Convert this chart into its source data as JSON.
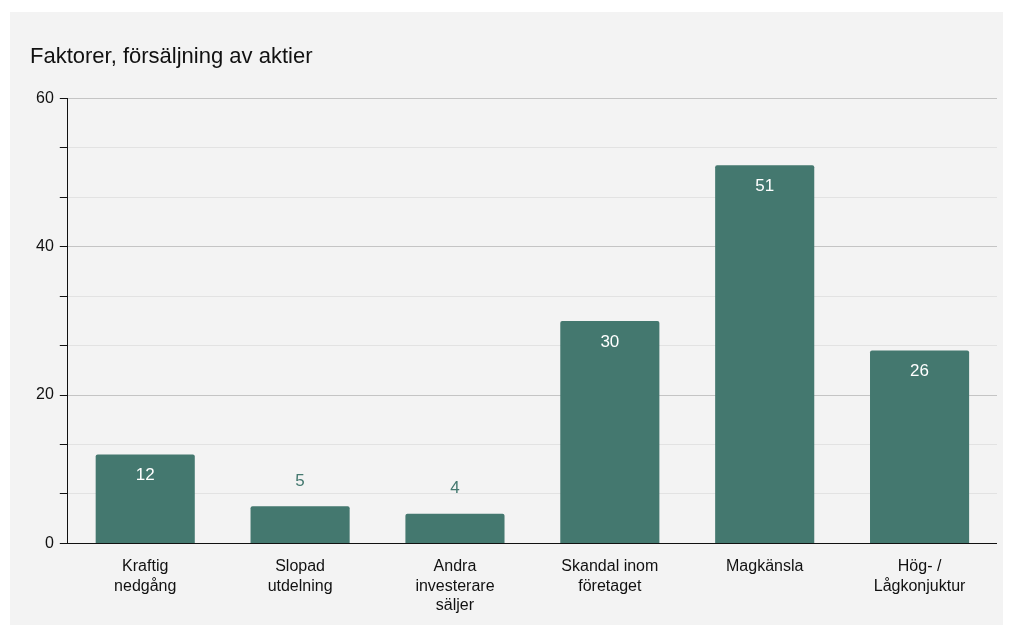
{
  "chart_data": {
    "type": "bar",
    "title": "Faktorer, försäljning av aktier",
    "categories": [
      "Kraftig nedgång",
      "Slopad utdelning",
      "Andra investerare säljer",
      "Skandal inom företaget",
      "Magkänsla",
      "Hög- / Lågkonjuktur"
    ],
    "values": [
      12,
      5,
      4,
      30,
      51,
      26
    ],
    "color": "#44786f",
    "ylim": [
      0,
      60
    ],
    "yticks": [
      0,
      {
        "value": 6.67,
        "label": null
      },
      {
        "value": 13.33,
        "label": null
      },
      20,
      {
        "value": 26.67,
        "label": null
      },
      {
        "value": 33.33,
        "label": null
      },
      40,
      {
        "value": 46.67,
        "label": null
      },
      {
        "value": 53.33,
        "label": null
      },
      60
    ],
    "grid": "y",
    "data_labels": true,
    "legend": false
  }
}
